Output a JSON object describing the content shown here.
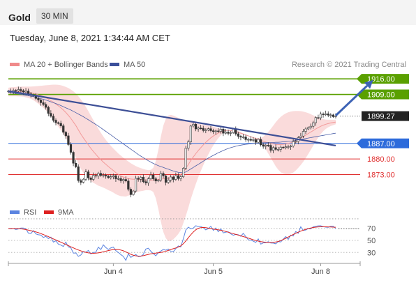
{
  "header": {
    "instrument": "Gold",
    "timeframe": "30 MIN"
  },
  "datetime": "Tuesday, June 8, 2021 1:34:44 AM CET",
  "legend": {
    "ma20_bb": "MA 20 + Bollinger Bands",
    "ma50": "MA 50"
  },
  "copyright": "Research © 2021 Trading Central",
  "rsi_legend": {
    "rsi": "RSI",
    "ma9": "9MA"
  },
  "x_ticks": [
    "Jun 4",
    "Jun 5",
    "Jun 8"
  ],
  "colors": {
    "resistance": "#5aa000",
    "support": "#2d6bdb",
    "target": "#e03030",
    "last_price": "#222222",
    "ma50": "#4a5fa8",
    "bollinger": "#f4b0b0",
    "rsi": "#5b84e0",
    "rsi_ma": "#dd2020"
  },
  "chart_data": [
    {
      "type": "candlestick",
      "title": "",
      "ylim": [
        1857.5,
        1922
      ],
      "levels": [
        {
          "label": "1916.00",
          "value": 1916.0,
          "kind": "resistance"
        },
        {
          "label": "1909.00",
          "value": 1909.0,
          "kind": "resistance"
        },
        {
          "label": "1899.27",
          "value": 1899.27,
          "kind": "last_price"
        },
        {
          "label": "1887.00",
          "value": 1887.0,
          "kind": "support"
        },
        {
          "label": "1880.00",
          "value": 1880.0,
          "kind": "target"
        },
        {
          "label": "1873.00",
          "value": 1873.0,
          "kind": "target"
        }
      ],
      "close": [
        1910.5,
        1910.2,
        1910.8,
        1910.6,
        1911.2,
        1910.7,
        1910.1,
        1910.5,
        1909.3,
        1908.8,
        1908.4,
        1907.2,
        1906.5,
        1905.3,
        1904.5,
        1903.2,
        1900.5,
        1899.2,
        1897.4,
        1896.3,
        1896.0,
        1894.9,
        1892.0,
        1890.4,
        1886.5,
        1883.0,
        1878.1,
        1876.5,
        1870.3,
        1869.5,
        1870.9,
        1874.2,
        1871.5,
        1870.8,
        1872.6,
        1872.3,
        1873.5,
        1872.6,
        1872.7,
        1872.3,
        1871.6,
        1872.0,
        1872.5,
        1871.1,
        1871.2,
        1870.2,
        1870.8,
        1870.1,
        1866.4,
        1864.0,
        1865.6,
        1871.3,
        1870.9,
        1871.8,
        1869.8,
        1869.2,
        1871.1,
        1872.8,
        1871.1,
        1870.1,
        1870.5,
        1873.5,
        1872.4,
        1869.5,
        1870.5,
        1871.9,
        1870.8,
        1872.5,
        1871.2,
        1872.0,
        1875.8,
        1884.8,
        1887.7,
        1894.8,
        1895.6,
        1893.5,
        1893.9,
        1893.8,
        1892.8,
        1893.0,
        1893.6,
        1892.7,
        1892.3,
        1892.6,
        1892.4,
        1893.4,
        1891.6,
        1892.1,
        1891.5,
        1891.8,
        1893.4,
        1891.3,
        1890.2,
        1889.8,
        1889.9,
        1888.7,
        1888.8,
        1888.4,
        1888.7,
        1887.5,
        1888.8,
        1886.4,
        1885.7,
        1886.2,
        1886.1,
        1883.9,
        1885.1,
        1884.3,
        1884.3,
        1885.3,
        1885.1,
        1885.5,
        1885.5,
        1885.8,
        1887.8,
        1887.9,
        1889.6,
        1890.3,
        1892.4,
        1893.5,
        1894.1,
        1894.7,
        1896.3,
        1898.6,
        1898.5,
        1900.2,
        1899.9,
        1900.3,
        1899.7,
        1899.8,
        1899.0,
        1899.3
      ],
      "ma20": [
        1910.1,
        1910.2,
        1910.3,
        1910.3,
        1910.3,
        1910.3,
        1910.2,
        1910.1,
        1910.0,
        1909.8,
        1909.5,
        1909.2,
        1908.8,
        1908.4,
        1908.0,
        1907.5,
        1906.9,
        1906.2,
        1905.5,
        1904.7,
        1903.9,
        1903.0,
        1902.0,
        1900.9,
        1899.6,
        1898.2,
        1896.6,
        1895.0,
        1893.1,
        1891.2,
        1889.5,
        1887.9,
        1886.3,
        1884.8,
        1883.4,
        1882.1,
        1880.8,
        1879.7,
        1878.6,
        1877.6,
        1876.6,
        1875.7,
        1874.8,
        1873.9,
        1873.1,
        1872.4,
        1871.9,
        1871.4,
        1871.2,
        1871.0,
        1870.9,
        1870.9,
        1870.8,
        1870.7,
        1870.6,
        1870.6,
        1870.5,
        1870.5,
        1870.6,
        1870.7,
        1870.8,
        1871.0,
        1871.1,
        1871.2,
        1871.3,
        1871.5,
        1871.7,
        1872.0,
        1872.4,
        1873.0,
        1874.3,
        1875.8,
        1877.5,
        1879.3,
        1880.9,
        1882.4,
        1883.8,
        1885.1,
        1886.3,
        1887.5,
        1888.5,
        1889.5,
        1890.3,
        1891.0,
        1891.6,
        1892.1,
        1892.5,
        1892.8,
        1892.9,
        1892.8,
        1892.6,
        1892.3,
        1892.0,
        1891.6,
        1891.2,
        1890.8,
        1890.4,
        1890.0,
        1889.6,
        1889.2,
        1888.8,
        1888.4,
        1888.0,
        1887.6,
        1887.3,
        1887.0,
        1886.8,
        1886.6,
        1886.5,
        1886.5,
        1886.6,
        1886.8,
        1887.0,
        1887.3,
        1887.7,
        1888.2,
        1888.8,
        1889.4,
        1890.0,
        1890.7,
        1891.4,
        1892.1,
        1892.8,
        1893.5,
        1894.1,
        1894.7,
        1895.2,
        1895.6,
        1895.9,
        1896.2,
        1896.4,
        1896.6
      ],
      "bb_upper": [
        1912.0,
        1912.2,
        1912.3,
        1912.4,
        1912.5,
        1912.5,
        1912.5,
        1912.5,
        1912.5,
        1912.5,
        1912.6,
        1912.7,
        1912.8,
        1912.9,
        1913.0,
        1913.1,
        1913.2,
        1913.3,
        1913.4,
        1913.4,
        1913.3,
        1913.1,
        1912.8,
        1912.4,
        1911.9,
        1911.2,
        1910.4,
        1909.4,
        1908.2,
        1906.8,
        1905.2,
        1903.4,
        1901.5,
        1899.5,
        1897.5,
        1895.5,
        1893.6,
        1891.8,
        1890.1,
        1888.6,
        1887.2,
        1885.9,
        1884.7,
        1883.6,
        1882.5,
        1881.5,
        1880.6,
        1879.7,
        1878.9,
        1878.1,
        1877.4,
        1876.8,
        1876.3,
        1875.9,
        1875.5,
        1875.2,
        1875.0,
        1875.1,
        1876.0,
        1879.0,
        1884.0,
        1890.0,
        1895.0,
        1898.0,
        1899.5,
        1899.8,
        1899.5,
        1899.0,
        1898.5,
        1898.0,
        1897.5,
        1897.2,
        1897.0,
        1896.7,
        1896.4,
        1896.1,
        1895.8,
        1895.6,
        1895.4,
        1895.2,
        1895.0,
        1894.8,
        1894.5,
        1894.2,
        1893.9,
        1893.6,
        1893.3,
        1893.0,
        1892.7,
        1892.4,
        1892.1,
        1891.8,
        1891.5,
        1891.2,
        1890.9,
        1890.6,
        1890.3,
        1890.0,
        1889.7,
        1889.5,
        1889.4,
        1889.5,
        1890.0,
        1890.9,
        1892.1,
        1893.5,
        1895.0,
        1896.5,
        1897.8,
        1898.9,
        1899.8,
        1900.5,
        1901.0,
        1901.3,
        1901.5,
        1901.6,
        1901.6,
        1901.5,
        1901.3,
        1901.0,
        1900.6,
        1900.1,
        1899.6,
        1899.1,
        1898.6,
        1898.2,
        1897.9,
        1897.7,
        1897.6,
        1897.6,
        1897.6,
        1897.6
      ],
      "bb_lower": [
        1908.2,
        1908.2,
        1908.2,
        1908.2,
        1908.1,
        1908.1,
        1908.0,
        1907.7,
        1907.4,
        1907.0,
        1906.4,
        1905.6,
        1904.8,
        1903.9,
        1903.0,
        1901.9,
        1900.6,
        1899.1,
        1897.6,
        1896.0,
        1894.5,
        1892.9,
        1891.2,
        1889.4,
        1887.3,
        1885.2,
        1882.8,
        1880.6,
        1878.0,
        1875.6,
        1873.8,
        1872.4,
        1871.1,
        1870.1,
        1869.3,
        1868.7,
        1868.0,
        1867.6,
        1867.1,
        1866.6,
        1866.0,
        1865.5,
        1864.9,
        1864.2,
        1863.7,
        1863.3,
        1863.2,
        1863.1,
        1863.5,
        1863.9,
        1864.4,
        1865.0,
        1865.3,
        1865.5,
        1865.7,
        1866.0,
        1866.0,
        1865.9,
        1865.2,
        1862.4,
        1857.6,
        1852.0,
        1847.2,
        1844.4,
        1843.1,
        1843.2,
        1843.9,
        1845.0,
        1846.3,
        1848.0,
        1851.1,
        1854.4,
        1858.0,
        1861.9,
        1865.4,
        1868.7,
        1871.8,
        1874.6,
        1877.2,
        1879.8,
        1882.0,
        1884.2,
        1886.1,
        1887.8,
        1889.3,
        1890.6,
        1891.7,
        1892.6,
        1893.1,
        1893.2,
        1893.1,
        1892.8,
        1892.5,
        1892.0,
        1891.5,
        1891.0,
        1890.5,
        1890.0,
        1889.5,
        1888.9,
        1888.2,
        1887.3,
        1886.0,
        1884.3,
        1882.5,
        1880.5,
        1878.6,
        1876.7,
        1875.2,
        1874.1,
        1873.4,
        1873.1,
        1873.0,
        1873.3,
        1873.9,
        1874.8,
        1876.0,
        1877.3,
        1878.7,
        1880.4,
        1882.2,
        1884.1,
        1886.0,
        1887.9,
        1889.6,
        1891.2,
        1892.5,
        1893.5,
        1894.2,
        1894.8,
        1895.2,
        1895.6
      ],
      "ma50": [
        1910.0,
        1909.8,
        1909.6,
        1909.4,
        1909.2,
        1909.0,
        1908.8,
        1908.6,
        1908.4,
        1908.2,
        1908.0,
        1907.7,
        1907.4,
        1907.1,
        1906.8,
        1906.5,
        1906.1,
        1905.7,
        1905.3,
        1904.9,
        1904.5,
        1904.0,
        1903.5,
        1903.0,
        1902.5,
        1902.0,
        1901.4,
        1900.8,
        1900.2,
        1899.6,
        1899.0,
        1898.3,
        1897.6,
        1896.9,
        1896.2,
        1895.5,
        1894.8,
        1894.0,
        1893.2,
        1892.4,
        1891.6,
        1890.8,
        1890.0,
        1889.2,
        1888.4,
        1887.6,
        1886.8,
        1886.0,
        1885.2,
        1884.4,
        1883.6,
        1882.8,
        1882.0,
        1881.3,
        1880.6,
        1879.9,
        1879.2,
        1878.6,
        1878.0,
        1877.5,
        1877.0,
        1876.6,
        1876.2,
        1875.8,
        1875.4,
        1875.0,
        1874.6,
        1874.3,
        1874.0,
        1873.9,
        1873.8,
        1874.2,
        1874.8,
        1875.5,
        1876.2,
        1876.9,
        1877.6,
        1878.3,
        1879.0,
        1879.7,
        1880.4,
        1881.0,
        1881.6,
        1882.2,
        1882.8,
        1883.3,
        1883.8,
        1884.3,
        1884.7,
        1885.1,
        1885.4,
        1885.7,
        1886.0,
        1886.2,
        1886.4,
        1886.6,
        1886.7,
        1886.8,
        1886.9,
        1887.0,
        1887.1,
        1887.2,
        1887.3,
        1887.3,
        1887.4,
        1887.4,
        1887.4,
        1887.5,
        1887.5,
        1887.6,
        1887.7,
        1887.8,
        1887.9,
        1888.0,
        1888.2,
        1888.4,
        1888.6,
        1888.8,
        1889.0,
        1889.2,
        1889.4,
        1889.6,
        1889.8,
        1890.0,
        1890.2,
        1890.4,
        1890.6,
        1890.8,
        1891.0,
        1891.2,
        1891.4,
        1891.6
      ],
      "trendline": {
        "from": [
          0,
          1910.5
        ],
        "to": [
          131,
          1886.0
        ]
      },
      "forecast_arrow": {
        "from": [
          131,
          1899.5
        ],
        "to": [
          146,
          1915.5
        ]
      },
      "x_ticks": [
        "Jun 4",
        "Jun 5",
        "Jun 8"
      ]
    },
    {
      "type": "line",
      "title": "",
      "ylim": [
        13,
        87
      ],
      "y_ticks": [
        70,
        50,
        30
      ],
      "series": [
        {
          "name": "RSI",
          "values": [
            69.6,
            69.1,
            69.8,
            68.1,
            69.0,
            70.5,
            70.5,
            69.2,
            62.1,
            61.3,
            66.3,
            60.8,
            59.4,
            58.8,
            54.8,
            56.7,
            52.9,
            55.5,
            47.2,
            49.4,
            43.9,
            42.2,
            39.9,
            47.2,
            39.1,
            37.8,
            29.0,
            29.2,
            23.5,
            25.7,
            31.4,
            30.3,
            33.5,
            27.5,
            30.0,
            30.4,
            38.8,
            34.8,
            42.6,
            38.2,
            35.0,
            37.6,
            38.9,
            33.0,
            30.0,
            26.5,
            23.4,
            16.9,
            27.5,
            21.9,
            24.2,
            26.6,
            22.9,
            23.5,
            26.7,
            35.7,
            37.1,
            32.0,
            28.2,
            24.6,
            29.4,
            32.3,
            35.1,
            33.7,
            35.7,
            31.9,
            31.1,
            36.3,
            40.8,
            39.3,
            52.6,
            67.2,
            72.0,
            69.3,
            70.3,
            74.4,
            73.0,
            73.0,
            71.1,
            67.5,
            69.4,
            73.3,
            66.6,
            70.6,
            64.5,
            69.3,
            62.5,
            63.8,
            64.2,
            60.9,
            58.6,
            60.0,
            59.5,
            56.8,
            61.7,
            56.5,
            51.0,
            50.4,
            48.9,
            46.6,
            52.6,
            43.9,
            46.0,
            46.1,
            47.9,
            45.6,
            45.5,
            44.3,
            48.2,
            47.4,
            52.1,
            56.4,
            51.7,
            58.8,
            57.2,
            64.8,
            61.8,
            72.5,
            66.6,
            67.1,
            69.7,
            69.1,
            72.5,
            73.4,
            74.2,
            74.3,
            72.8,
            72.0,
            71.6,
            73.6,
            73.7,
            69.5
          ]
        },
        {
          "name": "9MA",
          "values": [
            69.7,
            69.7,
            69.7,
            69.6,
            69.5,
            69.2,
            68.6,
            67.9,
            67.1,
            66.2,
            65.2,
            64.1,
            62.8,
            61.3,
            59.7,
            58.0,
            56.2,
            54.4,
            52.6,
            50.8,
            48.9,
            47.0,
            45.1,
            43.2,
            41.3,
            39.4,
            37.6,
            35.8,
            34.2,
            32.7,
            31.3,
            30.2,
            29.3,
            28.8,
            28.6,
            28.8,
            29.3,
            30.1,
            31.1,
            32.1,
            33.1,
            34.0,
            34.7,
            35.0,
            34.8,
            34.1,
            32.8,
            31.0,
            29.0,
            27.0,
            25.4,
            24.4,
            23.9,
            24.0,
            24.7,
            25.7,
            26.8,
            27.7,
            28.4,
            28.9,
            29.4,
            30.0,
            30.8,
            31.9,
            33.3,
            34.8,
            36.2,
            37.5,
            38.9,
            41.0,
            44.4,
            49.1,
            54.4,
            59.4,
            63.9,
            67.6,
            70.1,
            71.2,
            71.5,
            71.2,
            70.4,
            69.6,
            68.9,
            68.3,
            67.6,
            66.8,
            65.9,
            64.8,
            63.6,
            62.4,
            61.2,
            60.0,
            58.8,
            57.6,
            56.4,
            55.2,
            53.8,
            52.4,
            51.0,
            49.8,
            48.8,
            48.0,
            47.4,
            46.9,
            46.6,
            46.5,
            46.7,
            47.3,
            48.3,
            49.7,
            51.5,
            53.5,
            55.6,
            57.7,
            59.8,
            61.8,
            63.6,
            65.4,
            67.0,
            68.4,
            69.6,
            70.6,
            71.4,
            72.0,
            72.4,
            72.6,
            72.6,
            72.5,
            72.4,
            72.2,
            72.0,
            71.8
          ]
        }
      ],
      "x_ticks": [
        "Jun 4",
        "Jun 5",
        "Jun 8"
      ]
    }
  ]
}
